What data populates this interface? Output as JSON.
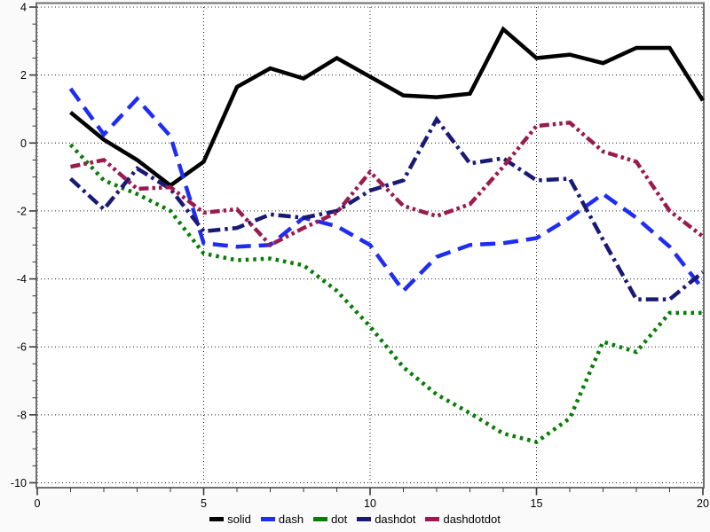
{
  "chart_data": {
    "type": "line",
    "title": "",
    "xlabel": "",
    "ylabel": "",
    "xlim": [
      0,
      20
    ],
    "ylim": [
      -10,
      4
    ],
    "grid": "dotted gridlines at major ticks, both axes",
    "legend_position": "bottom-center",
    "x_axis": {
      "major_ticks": [
        0,
        5,
        10,
        15,
        20
      ],
      "tick_labels": [
        "0",
        "5",
        "10",
        "15",
        "20"
      ],
      "minor_tick_step": 1
    },
    "y_axis": {
      "major_ticks": [
        4,
        2,
        0,
        -2,
        -4,
        -6,
        -8,
        -10
      ],
      "tick_labels": [
        "4",
        "2",
        "0",
        "-2",
        "-4",
        "-6",
        "-8",
        "-10"
      ],
      "minor_tick_step": 0.5
    },
    "x": [
      1,
      2,
      3,
      4,
      5,
      6,
      7,
      8,
      9,
      10,
      11,
      12,
      13,
      14,
      15,
      16,
      17,
      18,
      19,
      20
    ],
    "series": [
      {
        "name": "solid",
        "line_style": "solid",
        "color": "#000000",
        "values": [
          0.9,
          0.1,
          -0.5,
          -1.25,
          -0.55,
          1.65,
          2.2,
          1.9,
          2.5,
          1.95,
          1.4,
          1.35,
          1.45,
          3.35,
          2.5,
          2.6,
          2.35,
          2.8,
          2.8,
          1.25
        ]
      },
      {
        "name": "dash",
        "line_style": "dash",
        "color": "#1f2df2",
        "values": [
          1.6,
          0.25,
          1.3,
          0.2,
          -2.95,
          -3.05,
          -3.0,
          -2.2,
          -2.45,
          -3.0,
          -4.35,
          -3.35,
          -3.0,
          -2.95,
          -2.8,
          -2.2,
          -1.5,
          -2.2,
          -3.05,
          -4.3
        ]
      },
      {
        "name": "dot",
        "line_style": "dot",
        "color": "#077c07",
        "values": [
          -0.05,
          -1.1,
          -1.5,
          -2.0,
          -3.25,
          -3.45,
          -3.4,
          -3.6,
          -4.35,
          -5.4,
          -6.6,
          -7.4,
          -7.95,
          -8.55,
          -8.8,
          -8.1,
          -5.85,
          -6.15,
          -5.0,
          -5.0
        ]
      },
      {
        "name": "dashdot",
        "line_style": "dashdot",
        "color": "#1a1a75",
        "values": [
          -1.05,
          -1.95,
          -0.75,
          -1.35,
          -2.6,
          -2.5,
          -2.1,
          -2.2,
          -2.0,
          -1.4,
          -1.1,
          0.7,
          -0.6,
          -0.45,
          -1.1,
          -1.05,
          -2.85,
          -4.6,
          -4.6,
          -3.8
        ]
      },
      {
        "name": "dashdotdot",
        "line_style": "dashdotdot",
        "color": "#9a1b4e",
        "values": [
          -0.7,
          -0.5,
          -1.35,
          -1.3,
          -2.05,
          -1.95,
          -3.0,
          -2.5,
          -2.05,
          -0.85,
          -1.85,
          -2.15,
          -1.8,
          -0.7,
          0.5,
          0.6,
          -0.25,
          -0.55,
          -2.0,
          -2.75
        ]
      }
    ],
    "legend_labels": [
      "solid",
      "dash",
      "dot",
      "dashdot",
      "dashdotdot"
    ]
  },
  "colors": {
    "background": "#fafafa",
    "plot_background": "#ffffff",
    "frame": "#6f6f6f",
    "grid": "#1c1c1c",
    "tick": "#3a3a3a",
    "text": "#000000"
  }
}
